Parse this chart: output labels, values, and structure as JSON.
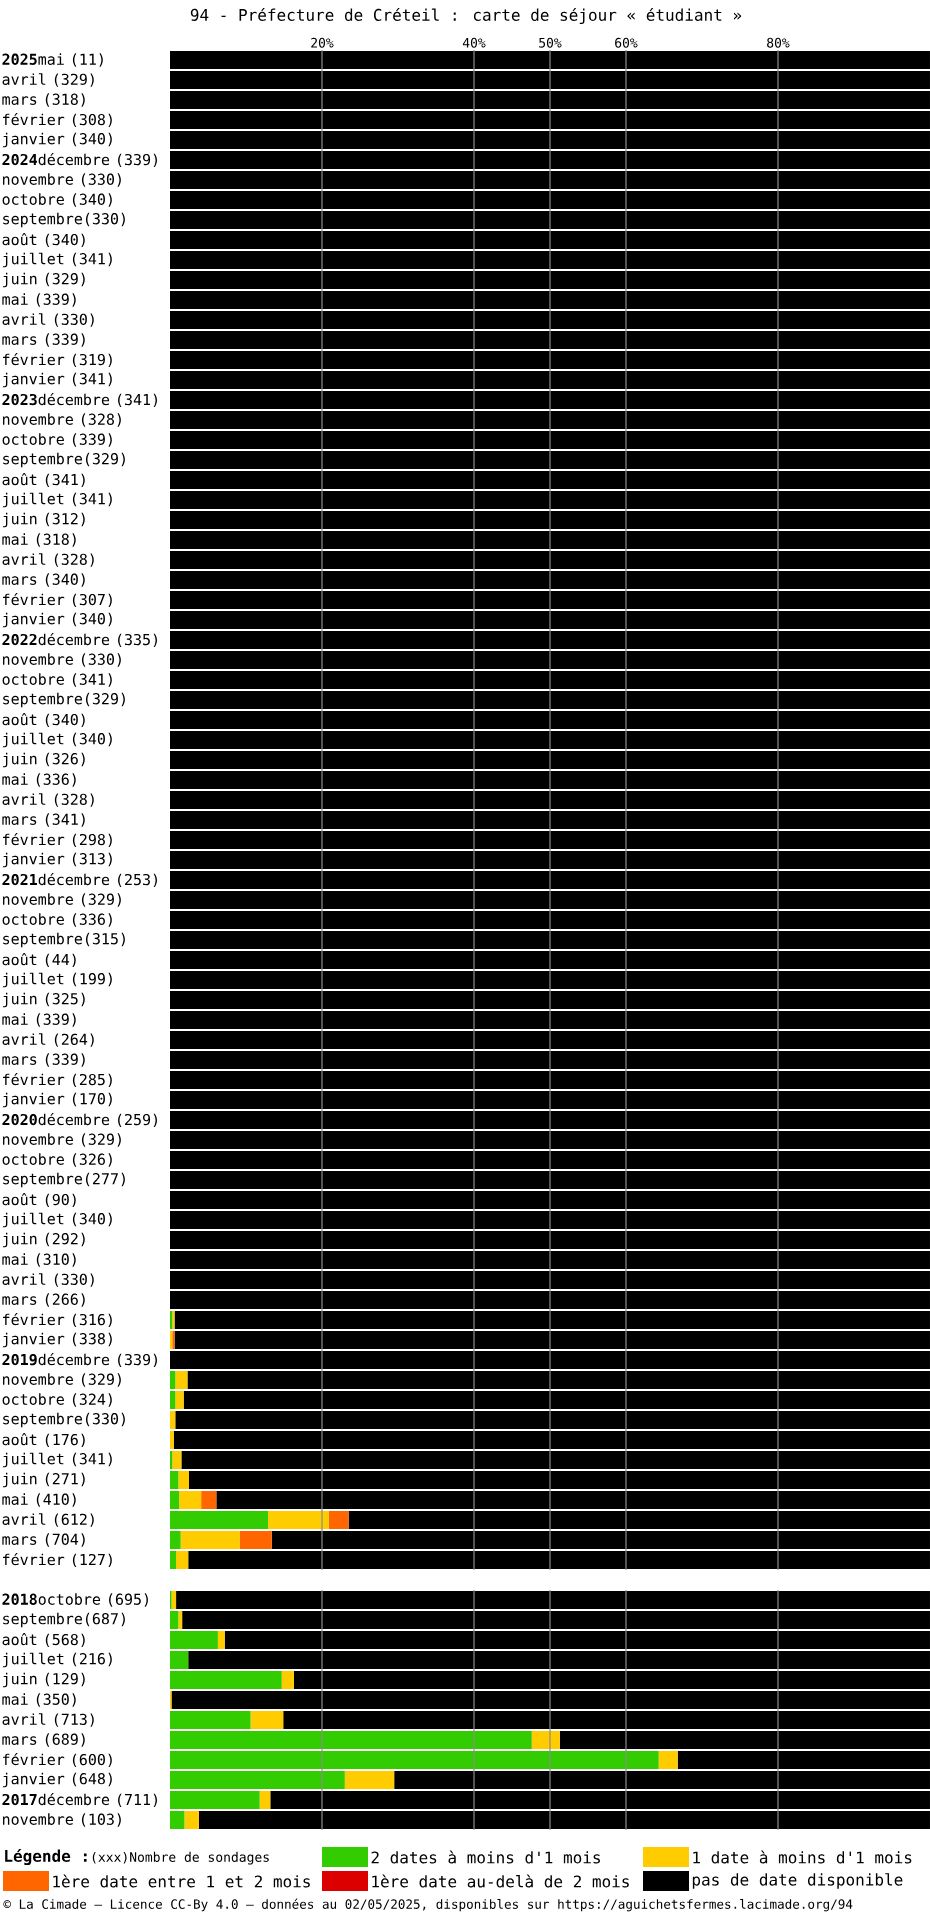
{
  "chart_data": [
    {
      "type": "bar",
      "orientation": "horizontal",
      "stacked": true,
      "title": "94 - Préfecture de Créteil : carte de séjour « étudiant »",
      "categories": [
        "**2025**mai (11)",
        "avril (329)",
        "mars (318)",
        "février (308)",
        "janvier (340)",
        "**2024**décembre (339)",
        "novembre (330)",
        "octobre (340)",
        "septembre(330)",
        "août (340)",
        "juillet (341)",
        "juin (329)",
        "mai (339)",
        "avril (330)",
        "mars (339)",
        "février (319)",
        "janvier (341)",
        "**2023**décembre (341)",
        "novembre (328)",
        "octobre (339)",
        "septembre(329)",
        "août (341)",
        "juillet (341)",
        "juin (312)",
        "mai (318)",
        "avril (328)",
        "mars (340)",
        "février (307)",
        "janvier (340)",
        "**2022**décembre (335)",
        "novembre (330)",
        "octobre (341)",
        "septembre(329)",
        "août (340)",
        "juillet (340)",
        "juin (326)",
        "mai (336)",
        "avril (328)",
        "mars (341)",
        "février (298)",
        "janvier (313)",
        "**2021**décembre (253)",
        "novembre (329)",
        "octobre (336)",
        "septembre(315)",
        "août (44)",
        "juillet (199)",
        "juin (325)",
        "mai (339)",
        "avril (264)",
        "mars (339)",
        "février (285)",
        "janvier (170)",
        "**2020**décembre (259)",
        "novembre (329)",
        "octobre (326)",
        "septembre(277)",
        "août (90)",
        "juillet (340)",
        "juin (292)",
        "mai (310)",
        "avril (330)",
        "mars (266)",
        "février (316)",
        "janvier (338)",
        "**2019**décembre (339)",
        "novembre (329)",
        "octobre (324)",
        "septembre(330)",
        "août (176)",
        "juillet (341)",
        "juin (271)",
        "mai (410)",
        "avril (612)",
        "mars (704)",
        "février (127)"
      ],
      "series": [
        {
          "color": "#33cc00",
          "values": [
            0,
            0,
            0,
            0,
            0,
            0,
            0,
            0,
            0,
            0,
            0,
            0,
            0,
            0,
            0,
            0,
            0,
            0,
            0,
            0,
            0,
            0,
            0,
            0,
            0,
            0,
            0,
            0,
            0,
            0,
            0,
            0,
            0,
            0,
            0,
            0,
            0,
            0,
            0,
            0,
            0,
            0,
            0,
            0,
            0,
            0,
            0,
            0,
            0,
            0,
            0,
            0,
            0,
            0,
            0,
            0,
            0,
            0,
            0,
            0,
            0,
            0,
            0,
            0.3,
            0,
            0,
            0.7,
            0.7,
            0,
            0,
            0.3,
            1.1,
            1.2,
            12.9,
            1.4,
            0.8
          ]
        },
        {
          "color": "#ffcc00",
          "values": [
            0,
            0,
            0,
            0,
            0,
            0,
            0,
            0,
            0,
            0,
            0,
            0,
            0,
            0,
            0,
            0,
            0,
            0,
            0,
            0,
            0,
            0,
            0,
            0,
            0,
            0,
            0,
            0,
            0,
            0,
            0,
            0,
            0,
            0,
            0,
            0,
            0,
            0,
            0,
            0,
            0,
            0,
            0,
            0,
            0,
            0,
            0,
            0,
            0,
            0,
            0,
            0,
            0,
            0,
            0,
            0,
            0,
            0,
            0,
            0,
            0,
            0,
            0,
            0.3,
            0.3,
            0,
            1.6,
            1.1,
            0.7,
            0.5,
            1.2,
            1.4,
            2.9,
            8.0,
            7.8,
            1.6
          ]
        },
        {
          "color": "#ff6600",
          "values": [
            0,
            0,
            0,
            0,
            0,
            0,
            0,
            0,
            0,
            0,
            0,
            0,
            0,
            0,
            0,
            0,
            0,
            0,
            0,
            0,
            0,
            0,
            0,
            0,
            0,
            0,
            0,
            0,
            0,
            0,
            0,
            0,
            0,
            0,
            0,
            0,
            0,
            0,
            0,
            0,
            0,
            0,
            0,
            0,
            0,
            0,
            0,
            0,
            0,
            0,
            0,
            0,
            0,
            0,
            0,
            0,
            0,
            0,
            0,
            0,
            0,
            0,
            0,
            0,
            0.3,
            0,
            0,
            0,
            0,
            0,
            0,
            0,
            2.0,
            2.6,
            4.2,
            0
          ]
        },
        {
          "color": "#dd0000",
          "values": [
            0,
            0,
            0,
            0,
            0,
            0,
            0,
            0,
            0,
            0,
            0,
            0,
            0,
            0,
            0,
            0,
            0,
            0,
            0,
            0,
            0,
            0,
            0,
            0,
            0,
            0,
            0,
            0,
            0,
            0,
            0,
            0,
            0,
            0,
            0,
            0,
            0,
            0,
            0,
            0,
            0,
            0,
            0,
            0,
            0,
            0,
            0,
            0,
            0,
            0,
            0,
            0,
            0,
            0,
            0,
            0,
            0,
            0,
            0,
            0,
            0,
            0,
            0,
            0,
            0,
            0,
            0,
            0,
            0,
            0,
            0,
            0,
            0,
            0,
            0,
            0
          ]
        },
        {
          "color": "#000000",
          "values": [
            100,
            100,
            100,
            100,
            100,
            100,
            100,
            100,
            100,
            100,
            100,
            100,
            100,
            100,
            100,
            100,
            100,
            100,
            100,
            100,
            100,
            100,
            100,
            100,
            100,
            100,
            100,
            100,
            100,
            100,
            100,
            100,
            100,
            100,
            100,
            100,
            100,
            100,
            100,
            100,
            100,
            100,
            100,
            100,
            100,
            100,
            100,
            100,
            100,
            100,
            100,
            100,
            100,
            100,
            100,
            100,
            100,
            100,
            100,
            100,
            100,
            100,
            100,
            99.4,
            99.4,
            100,
            97.7,
            98.2,
            99.3,
            99.5,
            98.5,
            97.5,
            93.9,
            76.5,
            86.6,
            97.6
          ]
        }
      ],
      "xlim": [
        0,
        100
      ],
      "xticks": [
        {
          "value": 20,
          "label": "20%"
        },
        {
          "value": 40,
          "label": "40%"
        },
        {
          "value": 50,
          "label": "50%"
        },
        {
          "value": 60,
          "label": "60%"
        },
        {
          "value": 80,
          "label": "80%"
        }
      ],
      "grid": "x"
    },
    {
      "type": "bar",
      "orientation": "horizontal",
      "stacked": true,
      "categories": [
        "**2018**octobre (695)",
        "septembre(687)",
        "août (568)",
        "juillet (216)",
        "juin (129)",
        "mai (350)",
        "avril (713)",
        "mars (689)",
        "février (600)",
        "janvier (648)",
        "**2017**décembre (711)",
        "novembre (103)"
      ],
      "series": [
        {
          "name": "2 dates à moins d'1 mois",
          "color": "#33cc00",
          "values": [
            0.2,
            1.1,
            6.3,
            2.4,
            14.7,
            0,
            10.6,
            47.6,
            64.3,
            23.0,
            11.8,
            1.9
          ]
        },
        {
          "name": "1 date à moins d'1 mois",
          "color": "#ffcc00",
          "values": [
            0.6,
            0.5,
            0.9,
            0,
            1.6,
            0.2,
            4.3,
            3.7,
            2.5,
            6.5,
            1.4,
            1.9
          ]
        },
        {
          "name": "1ère date entre 1 et 2 mois",
          "color": "#ff6600",
          "values": [
            0,
            0,
            0,
            0,
            0,
            0,
            0,
            0,
            0,
            0,
            0,
            0
          ]
        },
        {
          "name": "1ère date au-delà de 2 mois",
          "color": "#dd0000",
          "values": [
            0,
            0,
            0,
            0,
            0,
            0,
            0,
            0,
            0,
            0,
            0,
            0
          ]
        },
        {
          "name": "pas de date disponible",
          "color": "#000000",
          "values": [
            99.2,
            98.4,
            92.8,
            97.6,
            83.7,
            99.8,
            85.1,
            48.7,
            33.2,
            70.5,
            86.8,
            96.2
          ]
        }
      ],
      "xlim": [
        0,
        100
      ],
      "xticks": [
        20,
        40,
        50,
        60,
        80
      ],
      "tick_labels": "y",
      "grid": "x",
      "legend": "bottom",
      "legend_title": "Légende :",
      "annotations": [
        "(xxx)Nombre de sondages",
        "© La Cimade — Licence CC-By 4.0 — données au 02/05/2025, disponibles sur https://aguichetsfermes.lacimade.org/94"
      ]
    }
  ]
}
